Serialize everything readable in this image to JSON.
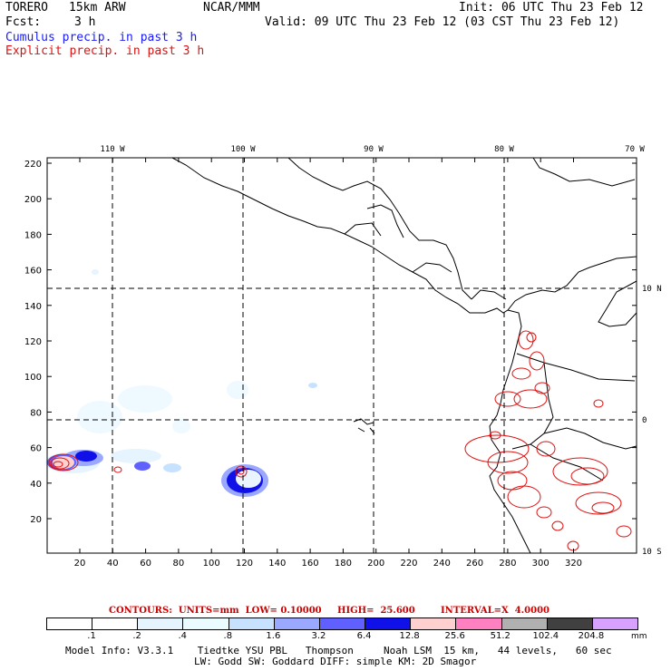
{
  "header": {
    "model": "TORERO",
    "resolution": "15km ARW",
    "org": "NCAR/MMM",
    "init": "Init: 06 UTC Thu 23 Feb 12",
    "fcst_label": "Fcst:",
    "fcst_value": "3 h",
    "valid": "Valid: 09 UTC Thu 23 Feb 12 (03 CST Thu 23 Feb 12)"
  },
  "legend": {
    "cumulus": "Cumulus precip. in past 3 h",
    "explicit": "Explicit precip. in past 3 h"
  },
  "map": {
    "lon_labels": [
      "110 W",
      "100 W",
      "90 W",
      "80 W",
      "70 W"
    ],
    "lat_labels": [
      "10 N",
      "0",
      "10 S"
    ],
    "x_ticks": [
      "20",
      "40",
      "60",
      "80",
      "100",
      "120",
      "140",
      "160",
      "180",
      "200",
      "220",
      "240",
      "260",
      "280",
      "300",
      "320"
    ],
    "y_ticks": [
      "20",
      "40",
      "60",
      "80",
      "100",
      "120",
      "140",
      "160",
      "180",
      "200",
      "220"
    ]
  },
  "contours": {
    "units": "CONTOURS:  UNITS=mm  LOW= 0.10000",
    "high": "HIGH=  25.600",
    "interval": "INTERVAL=X  4.0000"
  },
  "colorbar": {
    "labels": [
      ".1",
      ".2",
      ".4",
      ".8",
      "1.6",
      "3.2",
      "6.4",
      "12.8",
      "25.6",
      "51.2",
      "102.4",
      "204.8"
    ],
    "unit": "mm",
    "colors": [
      "#ffffff",
      "#ffffff",
      "#e6f4ff",
      "#eafcff",
      "#c6e2ff",
      "#9aa8ff",
      "#6060ff",
      "#1010e8",
      "#ffd0d0",
      "#ff80c0",
      "#b0b0b0",
      "#404040",
      "#d8a0ff"
    ]
  },
  "footer": {
    "line1": "Model Info: V3.3.1    Tiedtke YSU PBL   Thompson     Noah LSM  15 km,   44 levels,   60 sec",
    "line2": "LW: Godd SW: Goddard DIFF: simple KM: 2D Smagor"
  }
}
